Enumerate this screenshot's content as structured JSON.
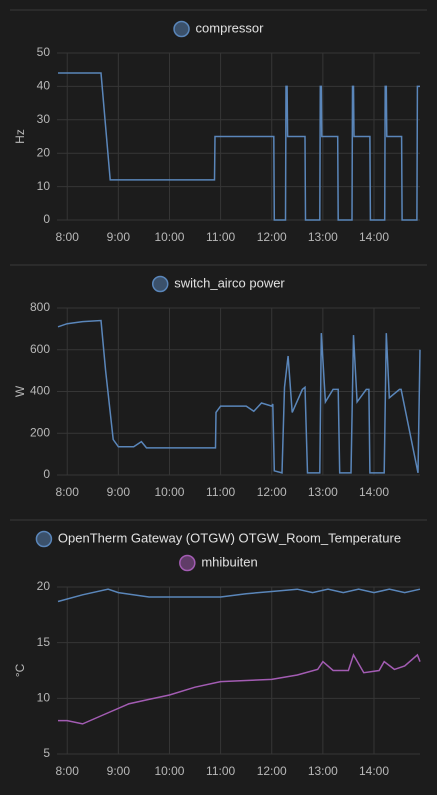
{
  "chart_data": [
    {
      "type": "line",
      "y_label": "Hz",
      "xlim": [
        7.8,
        14.9
      ],
      "ylim": [
        0,
        50
      ],
      "xticks": [
        {
          "value": 8,
          "label": "8:00"
        },
        {
          "value": 9,
          "label": "9:00"
        },
        {
          "value": 10,
          "label": "10:00"
        },
        {
          "value": 11,
          "label": "11:00"
        },
        {
          "value": 12,
          "label": "12:00"
        },
        {
          "value": 13,
          "label": "13:00"
        },
        {
          "value": 14,
          "label": "14:00"
        }
      ],
      "yticks": [
        0,
        10,
        20,
        30,
        40,
        50
      ],
      "grid": true,
      "series": [
        {
          "name": "compressor",
          "color": "#5a86ba",
          "x": [
            7.82,
            8.66,
            8.84,
            10.88,
            10.89,
            12.04,
            12.05,
            12.27,
            12.28,
            12.3,
            12.31,
            12.65,
            12.66,
            12.94,
            12.95,
            12.97,
            12.98,
            13.29,
            13.3,
            13.57,
            13.58,
            13.6,
            13.61,
            13.92,
            13.93,
            14.21,
            14.22,
            14.24,
            14.25,
            14.54,
            14.55,
            14.84,
            14.85,
            14.9
          ],
          "values": [
            44,
            44,
            12,
            12,
            25,
            25,
            0,
            0,
            40,
            40,
            25,
            25,
            0,
            0,
            40,
            40,
            25,
            25,
            0,
            0,
            40,
            40,
            25,
            25,
            0,
            0,
            40,
            40,
            25,
            25,
            0,
            0,
            40,
            40
          ]
        }
      ]
    },
    {
      "type": "line",
      "y_label": "W",
      "xlim": [
        7.8,
        14.9
      ],
      "ylim": [
        0,
        800
      ],
      "xticks": [
        {
          "value": 8,
          "label": "8:00"
        },
        {
          "value": 9,
          "label": "9:00"
        },
        {
          "value": 10,
          "label": "10:00"
        },
        {
          "value": 11,
          "label": "11:00"
        },
        {
          "value": 12,
          "label": "12:00"
        },
        {
          "value": 13,
          "label": "13:00"
        },
        {
          "value": 14,
          "label": "14:00"
        }
      ],
      "yticks": [
        0,
        200,
        400,
        600,
        800
      ],
      "grid": true,
      "series": [
        {
          "name": "switch_airco power",
          "color": "#5a86ba",
          "x": [
            7.82,
            8.0,
            8.3,
            8.66,
            8.75,
            8.9,
            9.0,
            9.3,
            9.45,
            9.55,
            10.9,
            10.91,
            11.0,
            11.5,
            11.65,
            11.8,
            12.0,
            12.02,
            12.05,
            12.2,
            12.25,
            12.32,
            12.4,
            12.6,
            12.65,
            12.7,
            12.94,
            12.97,
            13.05,
            13.2,
            13.3,
            13.33,
            13.55,
            13.6,
            13.67,
            13.85,
            13.9,
            13.92,
            14.2,
            14.24,
            14.3,
            14.5,
            14.53,
            14.86,
            14.9
          ],
          "values": [
            710,
            725,
            735,
            740,
            500,
            170,
            135,
            135,
            160,
            130,
            130,
            300,
            330,
            330,
            305,
            345,
            330,
            340,
            20,
            10,
            420,
            570,
            300,
            410,
            420,
            10,
            10,
            680,
            350,
            410,
            410,
            10,
            10,
            670,
            350,
            410,
            410,
            10,
            10,
            680,
            370,
            410,
            410,
            10,
            600
          ]
        }
      ]
    },
    {
      "type": "line",
      "y_label": "°C",
      "xlim": [
        7.8,
        14.9
      ],
      "ylim": [
        5,
        20
      ],
      "xticks": [
        {
          "value": 8,
          "label": "8:00"
        },
        {
          "value": 9,
          "label": "9:00"
        },
        {
          "value": 10,
          "label": "10:00"
        },
        {
          "value": 11,
          "label": "11:00"
        },
        {
          "value": 12,
          "label": "12:00"
        },
        {
          "value": 13,
          "label": "13:00"
        },
        {
          "value": 14,
          "label": "14:00"
        }
      ],
      "yticks": [
        5,
        10,
        15,
        20
      ],
      "grid": true,
      "series": [
        {
          "name": "OpenTherm Gateway (OTGW) OTGW_Room_Temperature",
          "color": "#5a86ba",
          "x": [
            7.82,
            8.3,
            8.8,
            9.0,
            9.6,
            10.5,
            11.0,
            11.5,
            12.0,
            12.5,
            12.8,
            13.1,
            13.4,
            13.7,
            14.0,
            14.3,
            14.6,
            14.9
          ],
          "values": [
            18.7,
            19.3,
            19.8,
            19.5,
            19.1,
            19.1,
            19.1,
            19.4,
            19.6,
            19.8,
            19.5,
            19.8,
            19.5,
            19.8,
            19.5,
            19.8,
            19.5,
            19.8
          ]
        },
        {
          "name": "mhibuiten",
          "color": "#a35cb3",
          "x": [
            7.82,
            8.0,
            8.3,
            8.7,
            9.2,
            9.6,
            10.0,
            10.5,
            11.0,
            11.5,
            12.0,
            12.5,
            12.9,
            13.0,
            13.2,
            13.5,
            13.6,
            13.8,
            14.1,
            14.2,
            14.4,
            14.6,
            14.85,
            14.9
          ],
          "values": [
            8.0,
            8.0,
            7.7,
            8.5,
            9.5,
            9.9,
            10.3,
            11.0,
            11.5,
            11.6,
            11.7,
            12.1,
            12.6,
            13.3,
            12.5,
            12.5,
            13.9,
            12.3,
            12.5,
            13.3,
            12.6,
            12.9,
            13.9,
            13.3
          ]
        }
      ]
    }
  ]
}
